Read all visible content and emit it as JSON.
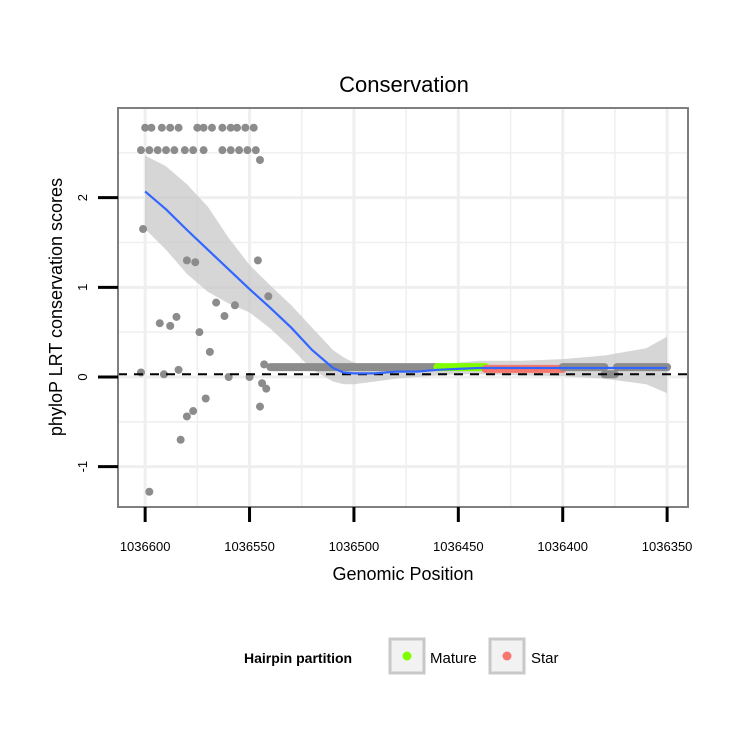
{
  "chart_data": {
    "type": "scatter",
    "title": "Conservation",
    "xlabel": "Genomic Position",
    "ylabel": "phyloP LRT conservation scores",
    "x_reversed": true,
    "xlim": [
      1036613,
      1036340
    ],
    "ylim": [
      -1.45,
      3.0
    ],
    "x_ticks": [
      1036600,
      1036550,
      1036500,
      1036450,
      1036400,
      1036350
    ],
    "x_tick_labels": [
      "1036600",
      "1036550",
      "1036500",
      "1036450",
      "1036400",
      "1036350"
    ],
    "y_ticks": [
      -1,
      0,
      1,
      2
    ],
    "y_tick_labels": [
      "-1",
      "0",
      "1",
      "2"
    ],
    "reference_line": {
      "y": 0.03,
      "style": "dashed"
    },
    "legend": {
      "title": "Hairpin partition",
      "position": "bottom",
      "entries": [
        {
          "label": "Mature",
          "color": "#7fff00"
        },
        {
          "label": "Star",
          "color": "#f8766d"
        }
      ]
    },
    "colors": {
      "points": "#8c8c8c",
      "smooth": "#3366ff",
      "band": "#c8c8c8",
      "panel_border": "#7f7f7f",
      "grid": "#efefef"
    },
    "points": [
      {
        "x": 1036600,
        "y": 2.78
      },
      {
        "x": 1036597,
        "y": 2.78
      },
      {
        "x": 1036592,
        "y": 2.78
      },
      {
        "x": 1036588,
        "y": 2.78
      },
      {
        "x": 1036584,
        "y": 2.78
      },
      {
        "x": 1036575,
        "y": 2.78
      },
      {
        "x": 1036572,
        "y": 2.78
      },
      {
        "x": 1036568,
        "y": 2.78
      },
      {
        "x": 1036563,
        "y": 2.78
      },
      {
        "x": 1036559,
        "y": 2.78
      },
      {
        "x": 1036556,
        "y": 2.78
      },
      {
        "x": 1036552,
        "y": 2.78
      },
      {
        "x": 1036548,
        "y": 2.78
      },
      {
        "x": 1036602,
        "y": 2.53
      },
      {
        "x": 1036598,
        "y": 2.53
      },
      {
        "x": 1036594,
        "y": 2.53
      },
      {
        "x": 1036590,
        "y": 2.53
      },
      {
        "x": 1036586,
        "y": 2.53
      },
      {
        "x": 1036581,
        "y": 2.53
      },
      {
        "x": 1036577,
        "y": 2.53
      },
      {
        "x": 1036572,
        "y": 2.53
      },
      {
        "x": 1036563,
        "y": 2.53
      },
      {
        "x": 1036559,
        "y": 2.53
      },
      {
        "x": 1036555,
        "y": 2.53
      },
      {
        "x": 1036551,
        "y": 2.53
      },
      {
        "x": 1036547,
        "y": 2.53
      },
      {
        "x": 1036545,
        "y": 2.42
      },
      {
        "x": 1036601,
        "y": 1.65
      },
      {
        "x": 1036546,
        "y": 1.3
      },
      {
        "x": 1036580,
        "y": 1.3
      },
      {
        "x": 1036576,
        "y": 1.28
      },
      {
        "x": 1036541,
        "y": 0.9
      },
      {
        "x": 1036566,
        "y": 0.83
      },
      {
        "x": 1036557,
        "y": 0.8
      },
      {
        "x": 1036562,
        "y": 0.68
      },
      {
        "x": 1036585,
        "y": 0.67
      },
      {
        "x": 1036593,
        "y": 0.6
      },
      {
        "x": 1036588,
        "y": 0.57
      },
      {
        "x": 1036574,
        "y": 0.5
      },
      {
        "x": 1036569,
        "y": 0.28
      },
      {
        "x": 1036543,
        "y": 0.14
      },
      {
        "x": 1036584,
        "y": 0.08
      },
      {
        "x": 1036602,
        "y": 0.05
      },
      {
        "x": 1036591,
        "y": 0.03
      },
      {
        "x": 1036560,
        "y": 0.0
      },
      {
        "x": 1036550,
        "y": 0.0
      },
      {
        "x": 1036544,
        "y": -0.07
      },
      {
        "x": 1036542,
        "y": -0.13
      },
      {
        "x": 1036571,
        "y": -0.24
      },
      {
        "x": 1036545,
        "y": -0.33
      },
      {
        "x": 1036577,
        "y": -0.38
      },
      {
        "x": 1036580,
        "y": -0.44
      },
      {
        "x": 1036583,
        "y": -0.7
      },
      {
        "x": 1036598,
        "y": -1.28
      }
    ],
    "segments": [
      {
        "x0": 1036540,
        "x1": 1036460,
        "y": 0.11,
        "partition": "other"
      },
      {
        "x0": 1036460,
        "x1": 1036437,
        "y": 0.11,
        "partition": "Mature"
      },
      {
        "x0": 1036437,
        "x1": 1036400,
        "y": 0.09,
        "partition": "Star"
      },
      {
        "x0": 1036400,
        "x1": 1036380,
        "y": 0.11,
        "partition": "other"
      },
      {
        "x0": 1036380,
        "x1": 1036375,
        "y": 0.03,
        "partition": "other"
      },
      {
        "x0": 1036374,
        "x1": 1036350,
        "y": 0.11,
        "partition": "other"
      }
    ],
    "smooth_line": {
      "x": [
        1036600,
        1036590,
        1036580,
        1036570,
        1036560,
        1036550,
        1036540,
        1036530,
        1036520,
        1036510,
        1036505,
        1036500,
        1036490,
        1036480,
        1036470,
        1036460,
        1036450,
        1036440,
        1036420,
        1036400,
        1036380,
        1036360,
        1036350
      ],
      "y": [
        2.07,
        1.87,
        1.64,
        1.42,
        1.2,
        0.98,
        0.77,
        0.55,
        0.3,
        0.1,
        0.05,
        0.04,
        0.04,
        0.06,
        0.06,
        0.08,
        0.09,
        0.1,
        0.1,
        0.1,
        0.1,
        0.1,
        0.1
      ]
    },
    "confidence_band": {
      "x": [
        1036600,
        1036590,
        1036580,
        1036570,
        1036560,
        1036550,
        1036540,
        1036530,
        1036520,
        1036510,
        1036505,
        1036500,
        1036490,
        1036480,
        1036470,
        1036460,
        1036450,
        1036440,
        1036420,
        1036400,
        1036380,
        1036360,
        1036350
      ],
      "upper": [
        2.47,
        2.35,
        2.15,
        1.9,
        1.55,
        1.25,
        1.02,
        0.8,
        0.55,
        0.3,
        0.22,
        0.16,
        0.12,
        0.12,
        0.12,
        0.14,
        0.16,
        0.18,
        0.18,
        0.2,
        0.24,
        0.32,
        0.45
      ],
      "lower": [
        1.65,
        1.42,
        1.15,
        0.95,
        0.82,
        0.72,
        0.54,
        0.32,
        0.08,
        -0.05,
        -0.08,
        -0.08,
        -0.05,
        -0.02,
        0.0,
        0.02,
        0.03,
        0.03,
        0.02,
        0.01,
        -0.02,
        -0.08,
        -0.18
      ]
    }
  }
}
